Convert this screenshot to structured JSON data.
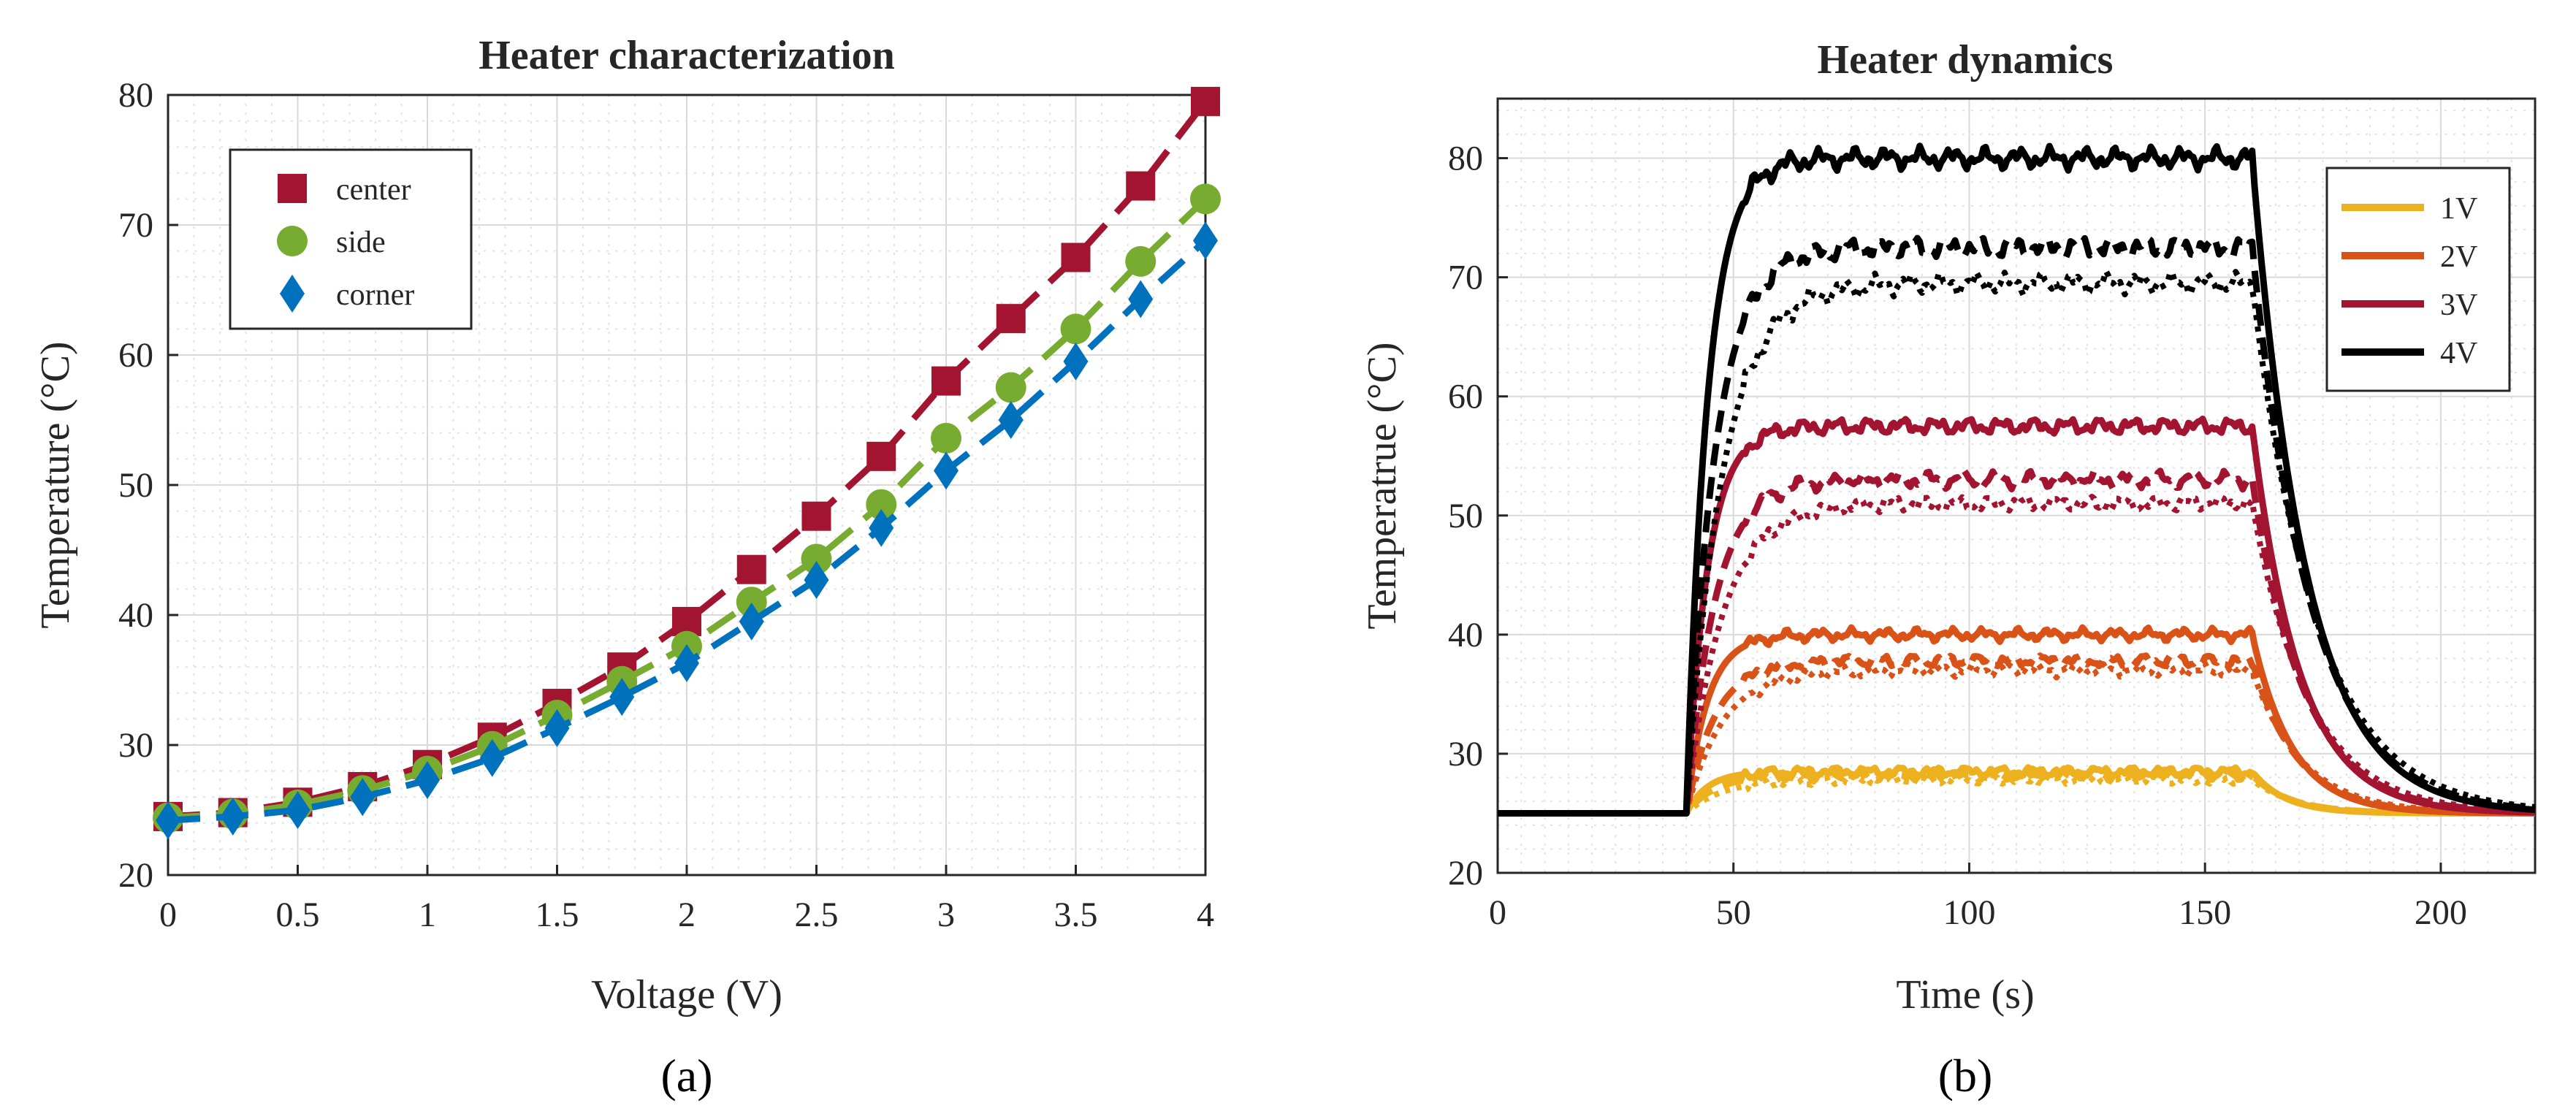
{
  "chart_data": [
    {
      "type": "scatter",
      "title": "Heater characterization",
      "xlabel": "Voltage (V)",
      "ylabel": "Temperature (°C)",
      "xlim": [
        0,
        4
      ],
      "ylim": [
        20,
        80
      ],
      "xticks": [
        0,
        0.5,
        1,
        1.5,
        2,
        2.5,
        3,
        3.5,
        4
      ],
      "xtick_labels": [
        "0",
        "0.5",
        "1",
        "1.5",
        "2",
        "2.5",
        "3",
        "3.5",
        "4"
      ],
      "yticks": [
        20,
        30,
        40,
        50,
        60,
        70,
        80
      ],
      "ytick_labels": [
        "20",
        "30",
        "40",
        "50",
        "60",
        "70",
        "80"
      ],
      "grid": true,
      "legend_position": "top-left",
      "caption": "(a)",
      "x": [
        0,
        0.25,
        0.5,
        0.75,
        1,
        1.25,
        1.5,
        1.75,
        2,
        2.25,
        2.5,
        2.75,
        3,
        3.25,
        3.5,
        3.75,
        4
      ],
      "series": [
        {
          "name": "center",
          "color": "#A2142F",
          "marker": "square",
          "values": [
            24.5,
            24.8,
            25.6,
            26.8,
            28.5,
            30.6,
            33.2,
            36.0,
            39.5,
            43.5,
            47.6,
            52.2,
            58.0,
            62.8,
            67.5,
            73.0,
            79.5
          ]
        },
        {
          "name": "side",
          "color": "#77AC30",
          "marker": "circle",
          "values": [
            24.4,
            24.7,
            25.4,
            26.5,
            28.0,
            29.9,
            32.3,
            34.9,
            37.6,
            41.0,
            44.3,
            48.5,
            53.6,
            57.5,
            62.0,
            67.2,
            72.0
          ]
        },
        {
          "name": "corner",
          "color": "#0072BD",
          "marker": "diamond",
          "values": [
            24.2,
            24.5,
            25.0,
            26.0,
            27.3,
            29.0,
            31.3,
            33.7,
            36.3,
            39.5,
            42.7,
            46.7,
            51.1,
            55.0,
            59.5,
            64.3,
            68.8
          ]
        }
      ]
    },
    {
      "type": "line",
      "title": "Heater dynamics",
      "xlabel": "Time (s)",
      "ylabel": "Temperatrue (°C)",
      "xlim": [
        0,
        220
      ],
      "ylim": [
        20,
        85
      ],
      "xticks": [
        0,
        50,
        100,
        150,
        200
      ],
      "xtick_labels": [
        "0",
        "50",
        "100",
        "150",
        "200"
      ],
      "yticks": [
        20,
        30,
        40,
        50,
        60,
        70,
        80
      ],
      "ytick_labels": [
        "20",
        "30",
        "40",
        "50",
        "60",
        "70",
        "80"
      ],
      "grid": true,
      "legend_position": "top-right",
      "caption": "(b)",
      "step_on_time_s": 40,
      "step_off_time_s": 160,
      "ambient_C": 25,
      "line_styles_note": "solid = center, dashed = side, dotted = corner",
      "series": [
        {
          "name": "1V",
          "color": "#EDB120",
          "steady_state_C": {
            "solid": 28.5,
            "dashed": 28.2,
            "dotted": 27.8
          }
        },
        {
          "name": "2V",
          "color": "#D95319",
          "steady_state_C": {
            "solid": 40.0,
            "dashed": 37.8,
            "dotted": 37.0
          }
        },
        {
          "name": "3V",
          "color": "#A2142F",
          "steady_state_C": {
            "solid": 57.5,
            "dashed": 53.0,
            "dotted": 51.0
          }
        },
        {
          "name": "4V",
          "color": "#000000",
          "steady_state_C": {
            "solid": 80.0,
            "dashed": 72.5,
            "dotted": 69.5
          }
        }
      ]
    }
  ]
}
